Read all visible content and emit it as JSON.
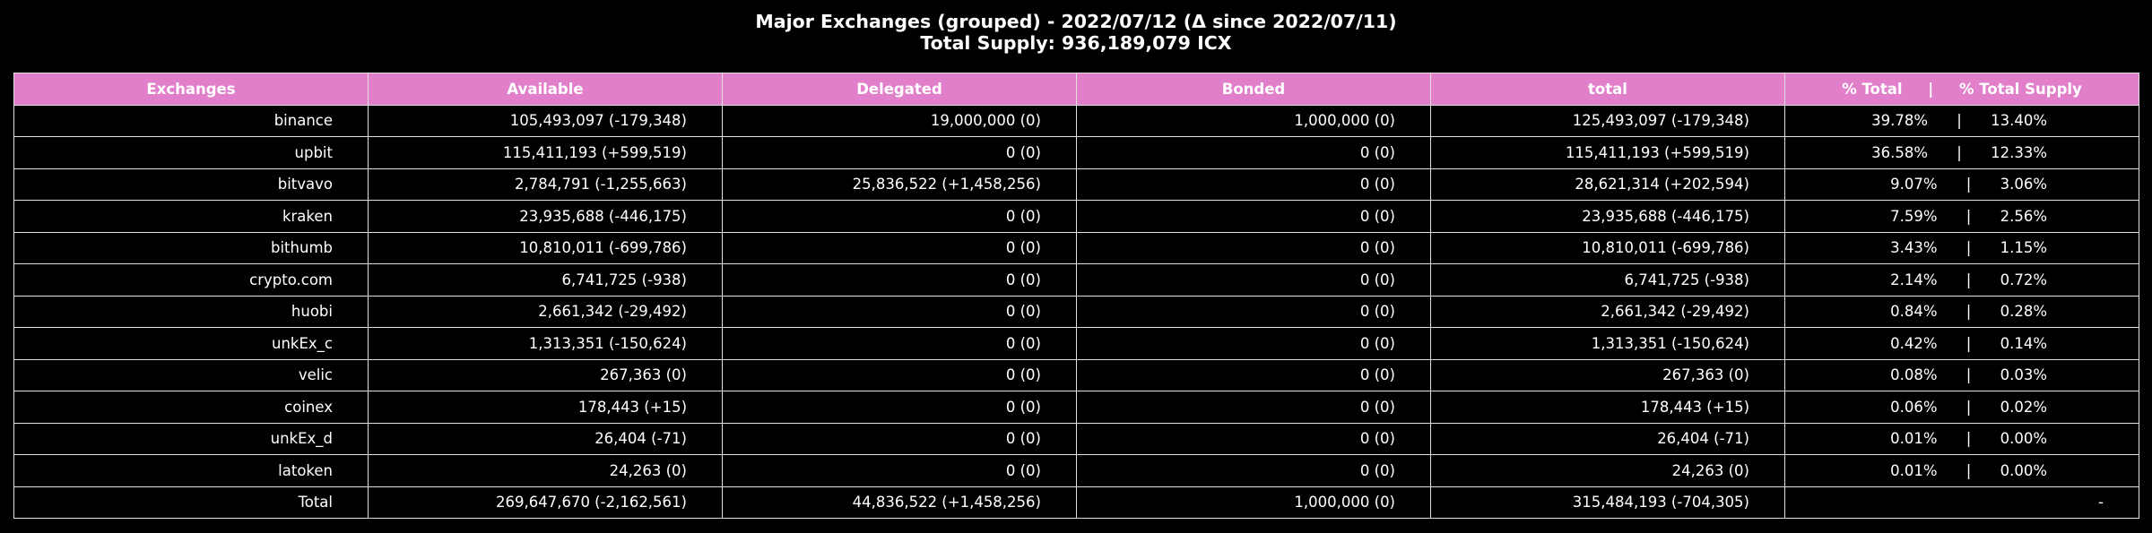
{
  "chart_data": {
    "type": "table",
    "title": "Major Exchanges (grouped) - 2022/07/12 (Δ since 2022/07/11)",
    "subtitle": "Total Supply: 936,189,079 ICX",
    "columns": [
      "Exchanges",
      "Available",
      "Delegated",
      "Bonded",
      "total",
      "% Total     |     % Total Supply"
    ],
    "rows": [
      {
        "exchange": "binance",
        "available": "105,493,097 (-179,348)",
        "delegated": "19,000,000 (0)",
        "bonded": "1,000,000 (0)",
        "total": "125,493,097 (-179,348)",
        "pct_total": "39.78%",
        "pct_supply": "13.40%"
      },
      {
        "exchange": "upbit",
        "available": "115,411,193 (+599,519)",
        "delegated": "0 (0)",
        "bonded": "0 (0)",
        "total": "115,411,193 (+599,519)",
        "pct_total": "36.58%",
        "pct_supply": "12.33%"
      },
      {
        "exchange": "bitvavo",
        "available": "2,784,791 (-1,255,663)",
        "delegated": "25,836,522 (+1,458,256)",
        "bonded": "0 (0)",
        "total": "28,621,314 (+202,594)",
        "pct_total": "9.07%",
        "pct_supply": "3.06%"
      },
      {
        "exchange": "kraken",
        "available": "23,935,688 (-446,175)",
        "delegated": "0 (0)",
        "bonded": "0 (0)",
        "total": "23,935,688 (-446,175)",
        "pct_total": "7.59%",
        "pct_supply": "2.56%"
      },
      {
        "exchange": "bithumb",
        "available": "10,810,011 (-699,786)",
        "delegated": "0 (0)",
        "bonded": "0 (0)",
        "total": "10,810,011 (-699,786)",
        "pct_total": "3.43%",
        "pct_supply": "1.15%"
      },
      {
        "exchange": "crypto.com",
        "available": "6,741,725 (-938)",
        "delegated": "0 (0)",
        "bonded": "0 (0)",
        "total": "6,741,725 (-938)",
        "pct_total": "2.14%",
        "pct_supply": "0.72%"
      },
      {
        "exchange": "huobi",
        "available": "2,661,342 (-29,492)",
        "delegated": "0 (0)",
        "bonded": "0 (0)",
        "total": "2,661,342 (-29,492)",
        "pct_total": "0.84%",
        "pct_supply": "0.28%"
      },
      {
        "exchange": "unkEx_c",
        "available": "1,313,351 (-150,624)",
        "delegated": "0 (0)",
        "bonded": "0 (0)",
        "total": "1,313,351 (-150,624)",
        "pct_total": "0.42%",
        "pct_supply": "0.14%"
      },
      {
        "exchange": "velic",
        "available": "267,363 (0)",
        "delegated": "0 (0)",
        "bonded": "0 (0)",
        "total": "267,363 (0)",
        "pct_total": "0.08%",
        "pct_supply": "0.03%"
      },
      {
        "exchange": "coinex",
        "available": "178,443 (+15)",
        "delegated": "0 (0)",
        "bonded": "0 (0)",
        "total": "178,443 (+15)",
        "pct_total": "0.06%",
        "pct_supply": "0.02%"
      },
      {
        "exchange": "unkEx_d",
        "available": "26,404 (-71)",
        "delegated": "0 (0)",
        "bonded": "0 (0)",
        "total": "26,404 (-71)",
        "pct_total": "0.01%",
        "pct_supply": "0.00%"
      },
      {
        "exchange": "latoken",
        "available": "24,263 (0)",
        "delegated": "0 (0)",
        "bonded": "0 (0)",
        "total": "24,263 (0)",
        "pct_total": "0.01%",
        "pct_supply": "0.00%"
      }
    ],
    "total_row": {
      "exchange": "Total",
      "available": "269,647,670 (-2,162,561)",
      "delegated": "44,836,522 (+1,458,256)",
      "bonded": "1,000,000 (0)",
      "total": "315,484,193 (-704,305)",
      "pct": "-"
    },
    "colors": {
      "header_bg": "#e27fca",
      "background": "#000000",
      "grid": "#e0e0e0",
      "text": "#ffffff"
    }
  }
}
